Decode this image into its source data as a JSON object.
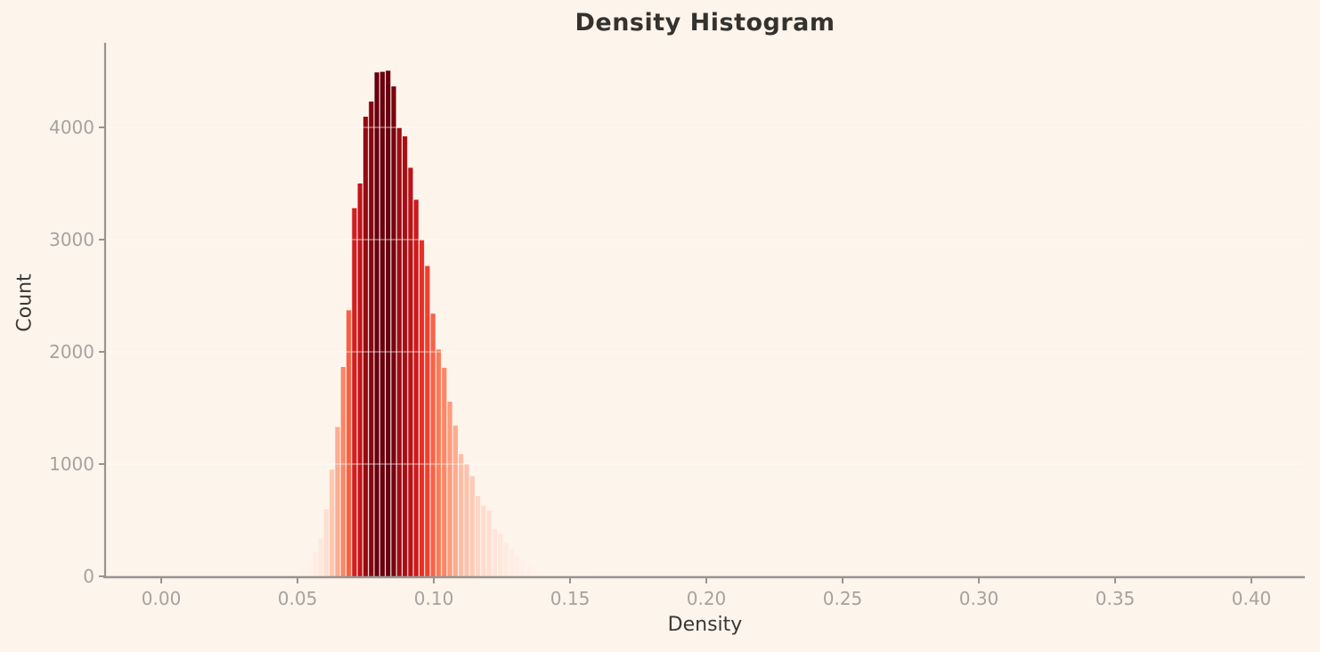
{
  "title": "Density Histogram",
  "chart_data": {
    "type": "bar",
    "subtype": "histogram",
    "title": "Density Histogram",
    "xlabel": "Density",
    "ylabel": "Count",
    "bin_start": 0.0513,
    "bin_width": 0.00206,
    "counts": [
      95,
      145,
      215,
      335,
      595,
      950,
      1330,
      1865,
      2370,
      3280,
      3500,
      4095,
      4230,
      4490,
      4495,
      4505,
      4365,
      3995,
      3920,
      3640,
      3355,
      2995,
      2765,
      2340,
      2020,
      1858,
      1556,
      1342,
      1088,
      1000,
      892,
      715,
      630,
      587,
      420,
      380,
      300,
      240,
      185,
      148,
      120,
      80,
      65,
      55,
      40,
      30,
      22,
      15,
      10,
      6,
      4,
      2,
      1
    ],
    "x_ticks": [
      0.0,
      0.05,
      0.1,
      0.15,
      0.2,
      0.25,
      0.3,
      0.35,
      0.4
    ],
    "x_tick_labels": [
      "0.00",
      "0.05",
      "0.10",
      "0.15",
      "0.20",
      "0.25",
      "0.30",
      "0.35",
      "0.40"
    ],
    "y_ticks": [
      0,
      1000,
      2000,
      3000,
      4000
    ],
    "y_tick_labels": [
      "0",
      "1000",
      "2000",
      "3000",
      "4000"
    ],
    "xlim": [
      -0.0206,
      0.4196
    ],
    "ylim": [
      0,
      4754
    ],
    "grid": "horizontal-white-over-bars",
    "legend": "none",
    "colormap": "Reds",
    "colormap_stops": [
      "#fff5f0",
      "#fee0d2",
      "#fcbba1",
      "#fc9272",
      "#fb6a4a",
      "#ef3b2c",
      "#cb181d",
      "#a50f15",
      "#67000d"
    ],
    "colors": {
      "background": "#fdf4ec",
      "axis_spine": "#98948f",
      "tick_mark": "#98948f",
      "tick_label": "#a6a29d",
      "title_text": "#35322e",
      "axis_label_text": "#3b3834",
      "gridline": "rgba(255,255,255,0.45)"
    }
  }
}
